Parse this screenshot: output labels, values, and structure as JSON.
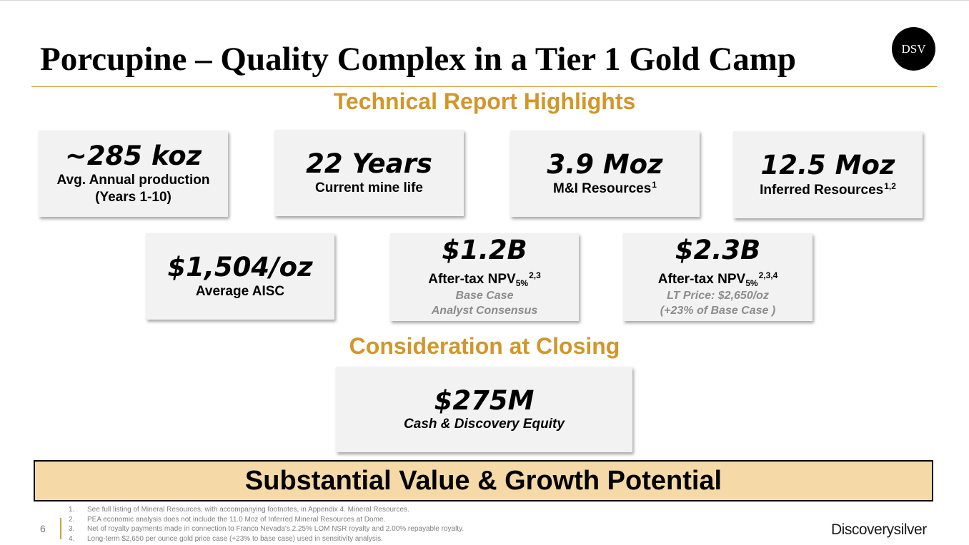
{
  "header": {
    "title": "Porcupine – Quality Complex in a Tier 1 Gold Camp",
    "badge": "DSV"
  },
  "highlights": {
    "heading": "Technical Report Highlights",
    "cards": [
      {
        "value": "~285 koz",
        "label_line1": "Avg. Annual production",
        "label_line2": "(Years 1-10)"
      },
      {
        "value": "22 Years",
        "label": "Current mine life"
      },
      {
        "value": "3.9 Moz",
        "label": "M&I Resources",
        "sup": "1"
      },
      {
        "value": "12.5 Moz",
        "label": "Inferred Resources",
        "sup": "1,2"
      },
      {
        "value": "$1,504/oz",
        "label": "Average AISC"
      },
      {
        "value": "$1.2B",
        "label": "After-tax NPV",
        "sub": "5%",
        "sup": "2,3",
        "note_line1": "Base Case",
        "note_line2": "Analyst Consensus"
      },
      {
        "value": "$2.3B",
        "label": "After-tax NPV",
        "sub": "5%",
        "sup": "2,3,4",
        "note_line1": "LT Price: $2,650/oz",
        "note_line2": "(+23% of Base Case )"
      }
    ]
  },
  "consideration": {
    "heading": "Consideration at Closing",
    "value": "$275M",
    "label": "Cash & Discovery Equity"
  },
  "banner": "Substantial Value & Growth Potential",
  "footer": {
    "page_number": "6",
    "notes": [
      {
        "num": "1.",
        "text": "See full listing of Mineral Resources, with accompanying footnotes, in Appendix 4. Mineral Resources."
      },
      {
        "num": "2.",
        "text": "PEA economic analysis  does not include the 11.0 Moz of Inferred Mineral Resources at Dome."
      },
      {
        "num": "3.",
        "text": "Net of royalty payments made in connection to Franco Nevada’s 2.25% LOM NSR royalty and 2.00% repayable royalty."
      },
      {
        "num": "4.",
        "text": "Long-term $2,650 per ounce gold price case (+23% to base case) used in sensitivity analysis."
      }
    ],
    "logo": "Discoverysilver"
  },
  "colors": {
    "accent": "#d2962a",
    "card_bg": "#f2f2f2",
    "banner_bg": "#f5d9a6",
    "note_gray": "#8c8c8c"
  }
}
